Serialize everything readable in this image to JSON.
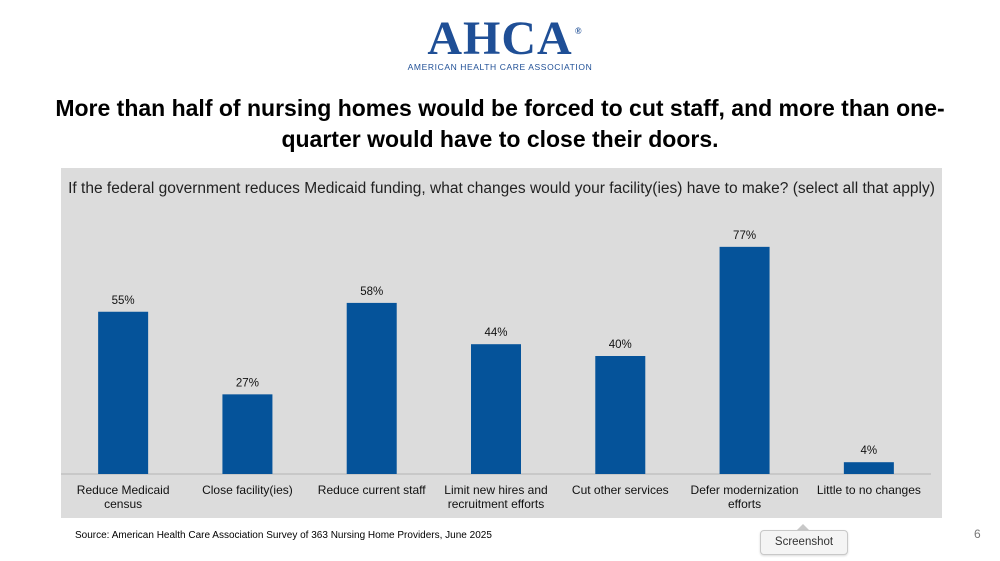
{
  "logo": {
    "name": "AHCA",
    "registered": "®",
    "tagline": "AMERICAN HEALTH CARE ASSOCIATION"
  },
  "title": "More than half of nursing homes would be forced to cut staff, and more than one-quarter would have to close their doors.",
  "source": "Source: American Health Care Association Survey of 363 Nursing Home Providers, June 2025",
  "page_number": "6",
  "screenshot_button": "Screenshot",
  "colors": {
    "bar": "#05539a",
    "panel": "#dcdcdc",
    "logo": "#1f4f96"
  },
  "chart_data": {
    "type": "bar",
    "title": "If the federal government reduces Medicaid funding, what changes would your facility(ies) have to make? (select all that apply)",
    "categories": [
      [
        "Reduce Medicaid",
        "census"
      ],
      [
        "Close facility(ies)"
      ],
      [
        "Reduce current staff"
      ],
      [
        "Limit new hires and",
        "recruitment efforts"
      ],
      [
        "Cut other services"
      ],
      [
        "Defer modernization",
        "efforts"
      ],
      [
        "Little to no changes"
      ]
    ],
    "values": [
      55,
      27,
      58,
      44,
      40,
      77,
      4
    ],
    "data_labels": [
      "55%",
      "27%",
      "58%",
      "44%",
      "40%",
      "77%",
      "4%"
    ],
    "ylim": [
      0,
      80
    ],
    "grid": false,
    "legend": "none"
  }
}
